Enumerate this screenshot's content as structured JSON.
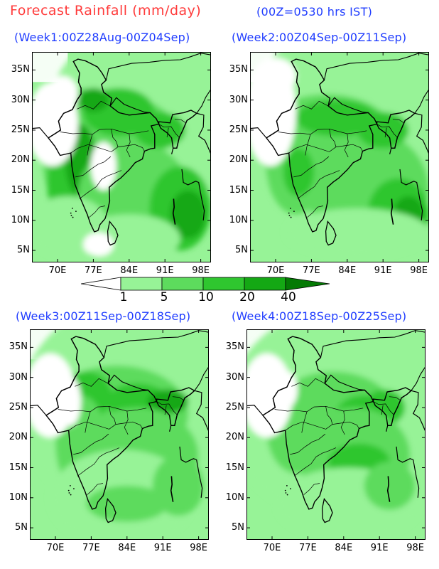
{
  "title": "Forecast Rainfall (mm/day)",
  "subtitle": "(00Z=0530 hrs IST)",
  "panels": [
    {
      "label": "(Week1:00Z28Aug-00Z04Sep)"
    },
    {
      "label": "(Week2:00Z04Sep-00Z11Sep)"
    },
    {
      "label": "(Week3:00Z11Sep-00Z18Sep)"
    },
    {
      "label": "(Week4:00Z18Sep-00Z25Sep)"
    }
  ],
  "lat_labels": [
    "35N",
    "30N",
    "25N",
    "20N",
    "15N",
    "10N",
    "5N"
  ],
  "lon_labels": [
    "70E",
    "77E",
    "84E",
    "91E",
    "98E"
  ],
  "legend": {
    "levels": [
      "1",
      "5",
      "10",
      "20",
      "40"
    ],
    "colors": [
      "#ffffff",
      "#97f397",
      "#5ddb5d",
      "#2fc62f",
      "#14a814",
      "#047a04"
    ]
  }
}
